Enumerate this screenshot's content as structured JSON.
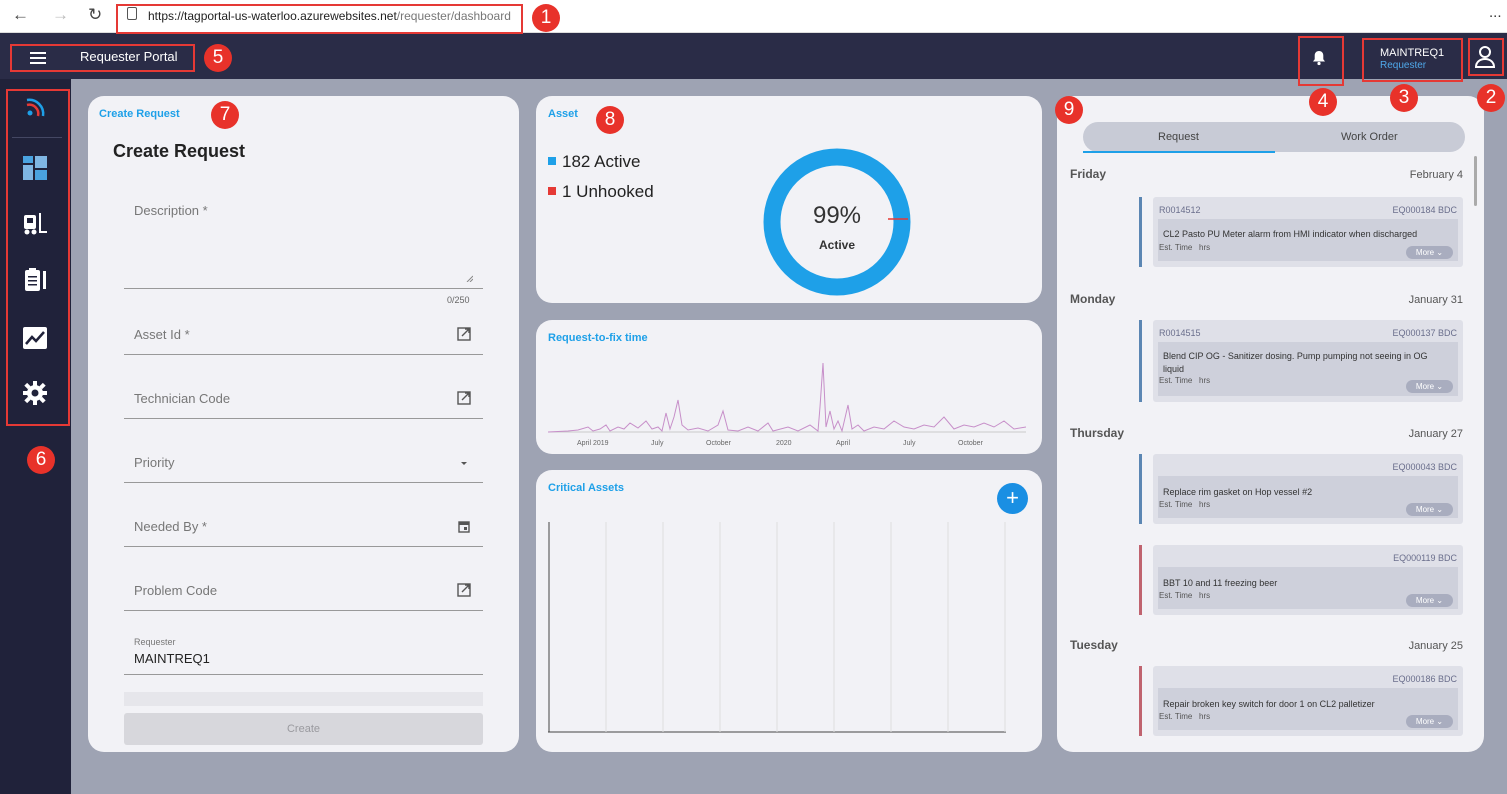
{
  "browser": {
    "url_main": "https://tagportal-us-waterloo.azurewebsites.net",
    "url_path": "/requester/dashboard",
    "more": "..."
  },
  "header": {
    "title": "Requester Portal",
    "user_name": "MAINTREQ1",
    "user_role": "Requester"
  },
  "annotations": [
    "1",
    "2",
    "3",
    "4",
    "5",
    "6",
    "7",
    "8",
    "9"
  ],
  "create_request": {
    "card_title": "Create Request",
    "heading": "Create Request",
    "fields": {
      "description": "Description *",
      "counter": "0/250",
      "asset_id": "Asset Id *",
      "technician_code": "Technician Code",
      "priority": "Priority",
      "needed_by": "Needed By *",
      "problem_code": "Problem Code"
    },
    "requester_label": "Requester",
    "requester_value": "MAINTREQ1",
    "create_label": "Create"
  },
  "asset": {
    "card_title": "Asset",
    "active_label": "182 Active",
    "unhooked_label": "1 Unhooked",
    "donut_percent": "99%",
    "donut_label": "Active",
    "active_fraction": 0.99,
    "colors": {
      "active": "#1ea0e8",
      "unhooked": "#e53935"
    }
  },
  "request_to_fix": {
    "card_title": "Request-to-fix time",
    "ticks": [
      "April 2019",
      "July",
      "October",
      "2020",
      "April",
      "July",
      "October"
    ]
  },
  "critical_assets": {
    "card_title": "Critical Assets",
    "add_label": "+"
  },
  "work_panel": {
    "tabs": [
      "Request",
      "Work Order"
    ],
    "active_tab": "Request",
    "days": [
      {
        "name": "Friday",
        "date": "February 4",
        "items": [
          {
            "id": "R0014512",
            "eq": "EQ000184  BDC",
            "desc": "CL2 Pasto PU Meter alarm from HMI indicator when discharged",
            "est_label": "Est. Time",
            "est_value": "hrs",
            "more": "More",
            "color": "#5b86b3"
          }
        ]
      },
      {
        "name": "Monday",
        "date": "January 31",
        "items": [
          {
            "id": "R0014515",
            "eq": "EQ000137  BDC",
            "desc": "Blend CIP OG - Sanitizer dosing. Pump pumping not seeing in OG liquid",
            "est_label": "Est. Time",
            "est_value": "hrs",
            "more": "More",
            "color": "#5b86b3"
          }
        ]
      },
      {
        "name": "Thursday",
        "date": "January 27",
        "items": [
          {
            "id": "",
            "eq": "EQ000043  BDC",
            "desc": "Replace rim gasket on Hop vessel #2",
            "est_label": "Est. Time",
            "est_value": "hrs",
            "more": "More",
            "color": "#5b86b3"
          },
          {
            "id": "",
            "eq": "EQ000119  BDC",
            "desc": "BBT 10 and 11 freezing beer",
            "est_label": "Est. Time",
            "est_value": "hrs",
            "more": "More",
            "color": "#c0636f"
          }
        ]
      },
      {
        "name": "Tuesday",
        "date": "January 25",
        "items": [
          {
            "id": "",
            "eq": "EQ000186  BDC",
            "desc": "Repair broken key switch for door 1 on CL2 palletizer",
            "est_label": "Est. Time",
            "est_value": "hrs",
            "more": "More",
            "color": "#c0636f"
          }
        ]
      }
    ]
  }
}
